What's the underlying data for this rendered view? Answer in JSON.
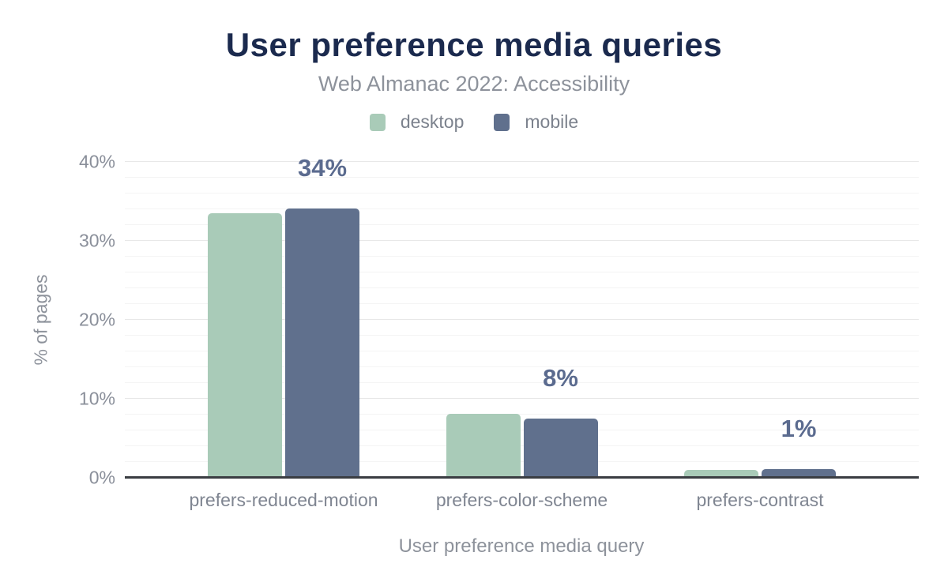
{
  "chart_data": {
    "type": "bar",
    "title": "User preference media queries",
    "subtitle": "Web Almanac 2022: Accessibility",
    "categories": [
      "prefers-reduced-motion",
      "prefers-color-scheme",
      "prefers-contrast"
    ],
    "series": [
      {
        "name": "desktop",
        "color": "#a9cbb8",
        "values": [
          33.5,
          8.1,
          1.0
        ]
      },
      {
        "name": "mobile",
        "color": "#60708d",
        "values": [
          34.1,
          7.5,
          1.1
        ]
      }
    ],
    "data_labels": [
      {
        "text": "34%",
        "category": "prefers-reduced-motion",
        "series": "mobile"
      },
      {
        "text": "8%",
        "category": "prefers-color-scheme",
        "series": "mobile"
      },
      {
        "text": "1%",
        "category": "prefers-contrast",
        "series": "mobile"
      }
    ],
    "xlabel": "User preference media query",
    "ylabel": "% of pages",
    "ylim": [
      0,
      40
    ],
    "yticks": [
      0,
      10,
      20,
      30,
      40
    ],
    "ytick_labels": [
      "0%",
      "10%",
      "20%",
      "30%",
      "40%"
    ],
    "minor_grid_step": 2,
    "grid": true,
    "legend_position": "top"
  },
  "colors": {
    "title": "#1b2a4e",
    "subtitle": "#8d929b",
    "legend_text": "#7c828d",
    "tick_text": "#8a8f9a",
    "axis_title_text": "#8d929b",
    "data_label": "#5b6b8f",
    "desktop_bar": "#a9cbb8",
    "mobile_bar": "#60708d",
    "grid_minor": "#f4f4f4",
    "grid_major": "#e8e8e8",
    "axis_line": "#3a3d42",
    "background": "#ffffff"
  }
}
